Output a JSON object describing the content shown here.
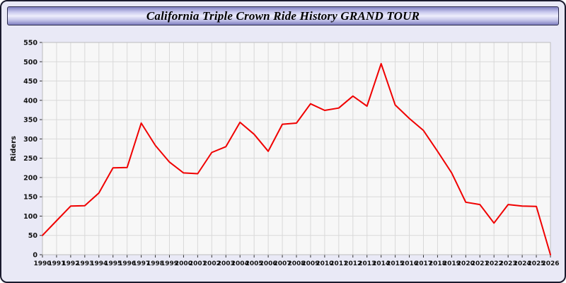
{
  "header": {
    "title": "California Triple Crown Ride History GRAND TOUR"
  },
  "colors": {
    "line": "#f00000",
    "background": "#e9e9f6",
    "plot_background": "#f7f7f7",
    "grid": "#d9d9d9"
  },
  "chart_data": {
    "type": "line",
    "title": "California Triple Crown Ride History GRAND TOUR",
    "xlabel": "",
    "ylabel": "Riders",
    "ylim": [
      0,
      550
    ],
    "ytick": 50,
    "grid": true,
    "legend": "none",
    "categories": [
      "1990",
      "1991",
      "1992",
      "1993",
      "1994",
      "1995",
      "1996",
      "1997",
      "1998",
      "1999",
      "2000",
      "2001",
      "2002",
      "2003",
      "2004",
      "2005",
      "2006",
      "2007",
      "2008",
      "2009",
      "2010",
      "2011",
      "2012",
      "2013",
      "2014",
      "2015",
      "2016",
      "2017",
      "2018",
      "2019",
      "2020",
      "2021",
      "2022",
      "2023",
      "2024",
      "2025",
      "2026"
    ],
    "series": [
      {
        "name": "Riders",
        "values": [
          50,
          88,
          126,
          127,
          160,
          225,
          226,
          341,
          283,
          240,
          212,
          210,
          265,
          280,
          343,
          312,
          268,
          338,
          341,
          391,
          374,
          380,
          411,
          385,
          495,
          388,
          353,
          322,
          268,
          212,
          136,
          130,
          82,
          130,
          126,
          125,
          0
        ]
      }
    ]
  }
}
